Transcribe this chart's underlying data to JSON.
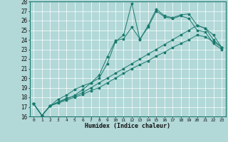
{
  "title": "",
  "xlabel": "Humidex (Indice chaleur)",
  "ylabel": "",
  "background_color": "#b2d8d8",
  "grid_color": "#ffffff",
  "line_color": "#1a7a6e",
  "xlim": [
    -0.5,
    23.5
  ],
  "ylim": [
    16,
    28
  ],
  "xticks": [
    0,
    1,
    2,
    3,
    4,
    5,
    6,
    7,
    8,
    9,
    10,
    11,
    12,
    13,
    14,
    15,
    16,
    17,
    18,
    19,
    20,
    21,
    22,
    23
  ],
  "yticks": [
    16,
    17,
    18,
    19,
    20,
    21,
    22,
    23,
    24,
    25,
    26,
    27,
    28
  ],
  "series": [
    [
      17.3,
      16.1,
      17.1,
      17.5,
      17.8,
      18.2,
      18.8,
      19.5,
      20.0,
      21.5,
      23.8,
      24.5,
      27.8,
      24.0,
      25.5,
      27.2,
      26.5,
      26.3,
      26.6,
      26.7,
      25.5,
      25.2,
      24.0,
      23.2
    ],
    [
      17.3,
      16.1,
      17.1,
      17.8,
      18.2,
      18.8,
      19.2,
      19.5,
      20.3,
      22.2,
      23.9,
      24.1,
      25.3,
      24.1,
      25.3,
      27.0,
      26.4,
      26.2,
      26.5,
      26.2,
      25.0,
      24.8,
      23.6,
      23.0
    ],
    [
      17.3,
      16.1,
      17.1,
      17.5,
      17.9,
      18.1,
      18.5,
      19.0,
      19.5,
      20.0,
      20.5,
      21.0,
      21.5,
      22.0,
      22.5,
      23.0,
      23.5,
      24.0,
      24.5,
      25.0,
      25.5,
      25.2,
      24.5,
      23.2
    ],
    [
      17.3,
      16.1,
      17.1,
      17.4,
      17.7,
      18.0,
      18.3,
      18.7,
      19.0,
      19.5,
      20.0,
      20.5,
      21.0,
      21.4,
      21.8,
      22.3,
      22.7,
      23.2,
      23.6,
      24.0,
      24.5,
      24.3,
      23.8,
      23.2
    ]
  ]
}
